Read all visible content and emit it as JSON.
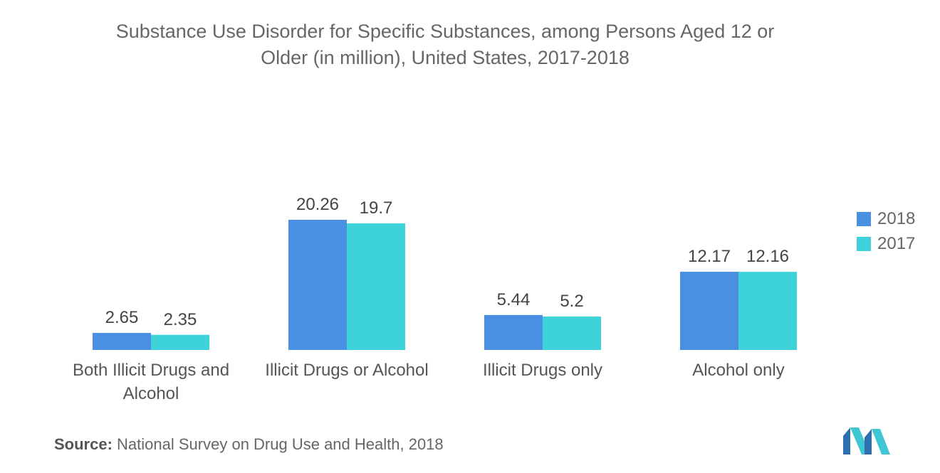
{
  "chart_data": {
    "type": "bar",
    "title": "Substance Use Disorder for Specific Substances, among Persons Aged 12 or Older (in million), United States, 2017-2018",
    "title_lines": [
      "Substance Use Disorder for Specific Substances, among Persons Aged 12 or",
      "Older (in million), United States, 2017-2018"
    ],
    "categories": [
      "Both Illicit Drugs and Alcohol",
      "Illicit Drugs or Alcohol",
      "Illicit Drugs only",
      "Alcohol only"
    ],
    "category_lines": [
      [
        "Both Illicit Drugs and",
        "Alcohol"
      ],
      [
        "Illicit Drugs or Alcohol"
      ],
      [
        "Illicit Drugs only"
      ],
      [
        "Alcohol only"
      ]
    ],
    "series": [
      {
        "name": "2018",
        "values": [
          2.65,
          20.26,
          5.44,
          12.17
        ],
        "labels": [
          "2.65",
          "20.26",
          "5.44",
          "12.17"
        ]
      },
      {
        "name": "2017",
        "values": [
          2.35,
          19.7,
          5.2,
          12.16
        ],
        "labels": [
          "2.35",
          "19.7",
          "5.2",
          "12.16"
        ]
      }
    ],
    "xlabel": "",
    "ylabel": "",
    "ylim": [
      0,
      20.26
    ],
    "grid": false,
    "legend_position": "right"
  },
  "colors": {
    "2018": "#4a90e2",
    "2017": "#3ed3da",
    "axis": "#dddddd",
    "text": "#555555"
  },
  "source": {
    "label": "Source:",
    "text": "National Survey on Drug Use and Health, 2018"
  },
  "logo": {
    "icon": "mordor-logo-icon"
  }
}
